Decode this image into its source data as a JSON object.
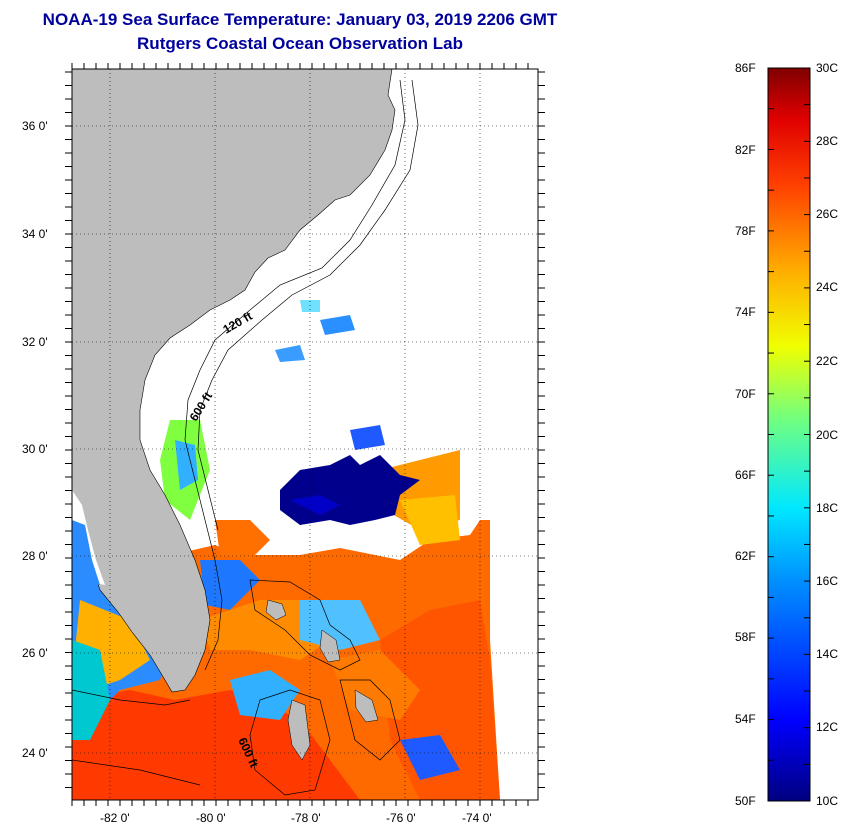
{
  "header": {
    "title": "NOAA-19 Sea Surface Temperature:  January 03, 2019 2206 GMT",
    "subtitle": "Rutgers Coastal Ocean Observation Lab"
  },
  "map": {
    "lat_labels": [
      "36 0'",
      "34 0'",
      "32 0'",
      "30 0'",
      "28 0'",
      "26 0'",
      "24 0'"
    ],
    "lon_labels": [
      "-82 0'",
      "-80 0'",
      "-78 0'",
      "-76 0'",
      "-74 0'"
    ],
    "isobath_labels": [
      "120 ft",
      "600 ft",
      "600 ft"
    ],
    "colors": {
      "land": "#bdbdbd",
      "cloud": "#ffffff",
      "warm": "#ff6a00",
      "hot": "#ff2a00",
      "mid": "#ffb000",
      "cool": "#40a0ff",
      "cold": "#00008c"
    }
  },
  "colorbar": {
    "f_labels": [
      "86F",
      "82F",
      "78F",
      "74F",
      "70F",
      "66F",
      "62F",
      "58F",
      "54F",
      "50F"
    ],
    "c_labels": [
      "30C",
      "28C",
      "26C",
      "24C",
      "22C",
      "20C",
      "18C",
      "16C",
      "14C",
      "12C",
      "10C"
    ]
  }
}
